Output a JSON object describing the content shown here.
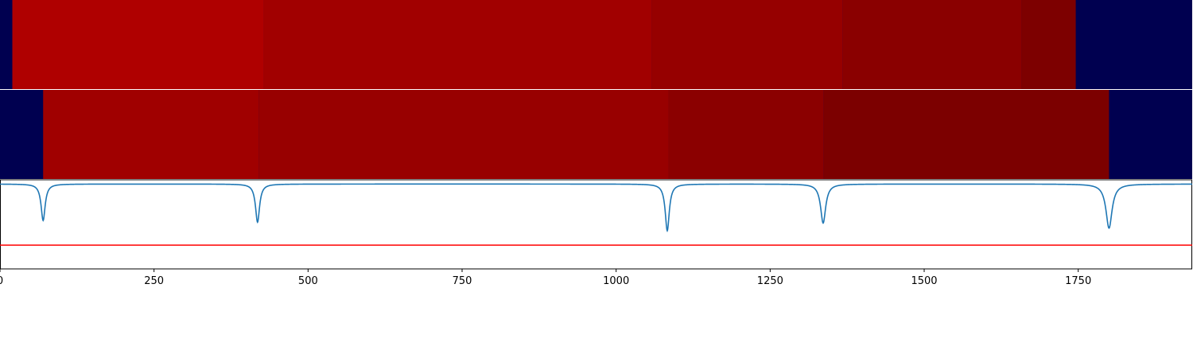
{
  "chart_data": [
    {
      "type": "heatmap",
      "panel": "top",
      "xlim": [
        0,
        1935
      ],
      "background_color": "#000050",
      "segments": [
        {
          "x0": 20,
          "x1": 428,
          "color": "#AF0000"
        },
        {
          "x0": 428,
          "x1": 1058,
          "color": "#A10000"
        },
        {
          "x0": 1058,
          "x1": 1368,
          "color": "#960000"
        },
        {
          "x0": 1368,
          "x1": 1658,
          "color": "#8A0000"
        },
        {
          "x0": 1658,
          "x1": 1746,
          "color": "#7D0000"
        }
      ]
    },
    {
      "type": "heatmap",
      "panel": "middle",
      "xlim": [
        0,
        1935
      ],
      "background_color": "#000050",
      "segments": [
        {
          "x0": 70,
          "x1": 420,
          "color": "#A00000"
        },
        {
          "x0": 420,
          "x1": 1085,
          "color": "#980000"
        },
        {
          "x0": 1085,
          "x1": 1337,
          "color": "#8B0000"
        },
        {
          "x0": 1337,
          "x1": 1800,
          "color": "#7C0000"
        }
      ]
    },
    {
      "type": "line",
      "panel": "bottom",
      "xlim": [
        0,
        1935
      ],
      "ylim": [
        -1.0,
        0.05
      ],
      "series": [
        {
          "color": "#1F77B4",
          "baseline": 0,
          "dips": [
            {
              "x": 70,
              "depth": 0.43,
              "width": 4
            },
            {
              "x": 418,
              "depth": 0.45,
              "width": 4
            },
            {
              "x": 1083,
              "depth": 0.55,
              "width": 4
            },
            {
              "x": 1336,
              "depth": 0.46,
              "width": 5
            },
            {
              "x": 1800,
              "depth": 0.52,
              "width": 6
            }
          ]
        }
      ],
      "hline": {
        "y": -0.72,
        "color": "#FF0000"
      },
      "xticks": [
        0,
        250,
        500,
        750,
        1000,
        1250,
        1500,
        1750
      ],
      "xtick_labels": [
        "0",
        "250",
        "500",
        "750",
        "1000",
        "1250",
        "1500",
        "1750"
      ]
    }
  ]
}
